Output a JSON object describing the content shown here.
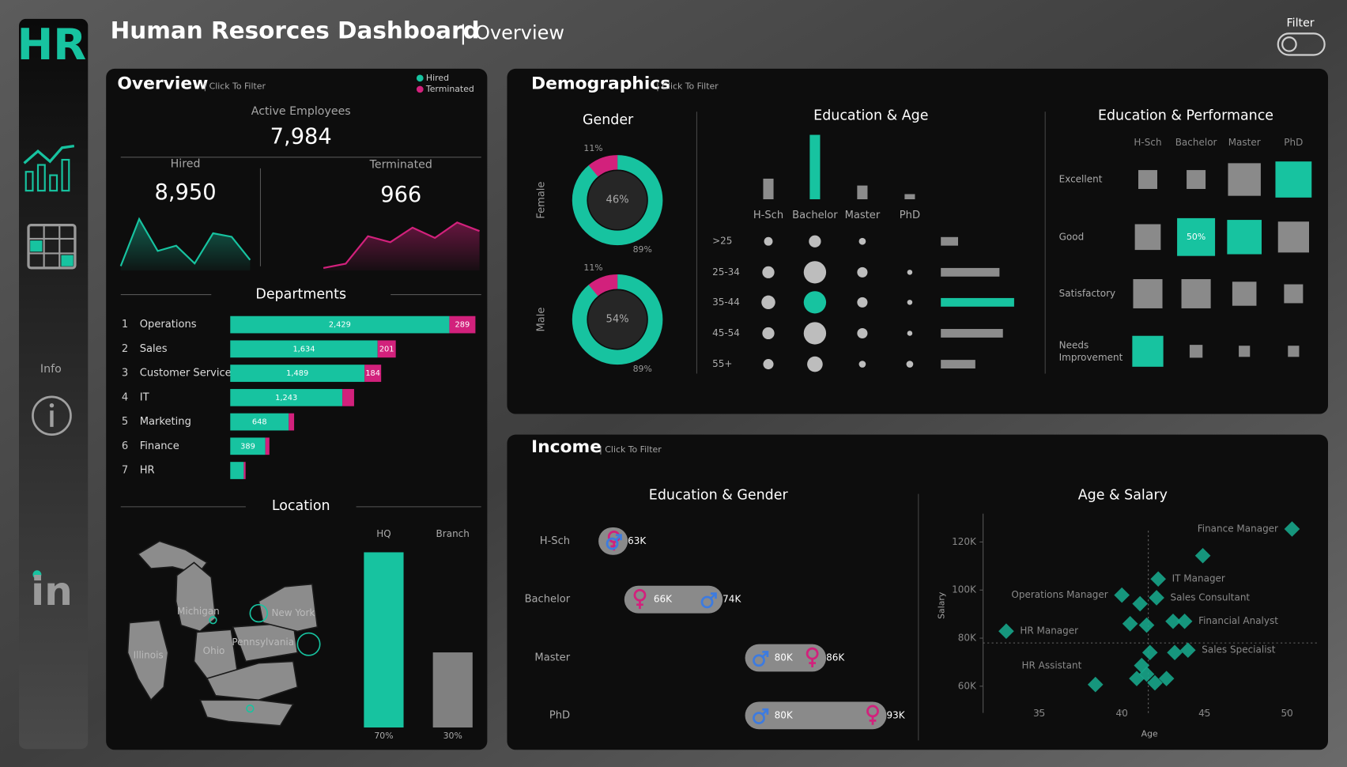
{
  "header": {
    "logo": "HR",
    "title": "Human Resorces Dashboard",
    "separator": "|",
    "subtitle": "Overview",
    "filter_label": "Filter"
  },
  "sidebar": {
    "info_label": "Info",
    "linkedin": "in"
  },
  "overview": {
    "title": "Overview",
    "hint": "| Click To Filter",
    "legend": [
      {
        "name": "Hired",
        "color": "#17c3a0"
      },
      {
        "name": "Terminated",
        "color": "#d2217c"
      }
    ],
    "active_label": "Active Employees",
    "active_value": "7,984",
    "hired_label": "Hired",
    "hired_value": "8,950",
    "terminated_label": "Terminated",
    "terminated_value": "966",
    "hired_trend": [
      5,
      58,
      22,
      28,
      8,
      42,
      38,
      12
    ],
    "terminated_trend": [
      3,
      8,
      40,
      33,
      50,
      38,
      56,
      46
    ]
  },
  "departments": {
    "title": "Departments",
    "rows": [
      {
        "rank": "1",
        "name": "Operations",
        "hired": 2429,
        "hired_label": "2,429",
        "terminated": 289,
        "terminated_label": "289"
      },
      {
        "rank": "2",
        "name": "Sales",
        "hired": 1634,
        "hired_label": "1,634",
        "terminated": 201,
        "terminated_label": "201"
      },
      {
        "rank": "3",
        "name": "Customer Service",
        "hired": 1489,
        "hired_label": "1,489",
        "terminated": 184,
        "terminated_label": "184"
      },
      {
        "rank": "4",
        "name": "IT",
        "hired": 1243,
        "hired_label": "1,243",
        "terminated": 130
      },
      {
        "rank": "5",
        "name": "Marketing",
        "hired": 648,
        "hired_label": "648",
        "terminated": 60
      },
      {
        "rank": "6",
        "name": "Finance",
        "hired": 389,
        "hired_label": "389",
        "terminated": 45
      },
      {
        "rank": "7",
        "name": "HR",
        "hired": 150,
        "terminated": 20
      }
    ]
  },
  "location": {
    "title": "Location",
    "states": [
      "Michigan",
      "New York",
      "Illinois",
      "Ohio",
      "Pennsylvania"
    ],
    "categories": [
      "HQ",
      "Branch"
    ],
    "values": [
      70,
      30
    ],
    "value_labels": [
      "70%",
      "30%"
    ],
    "colors": [
      "#17c3a0",
      "#808080"
    ]
  },
  "demographics": {
    "title": "Demographics",
    "hint": "| Click To Filter",
    "gender": {
      "title": "Gender",
      "groups": [
        {
          "label": "Female",
          "share": "46%",
          "values": [
            11,
            89
          ],
          "value_labels": [
            "11%",
            "89%"
          ]
        },
        {
          "label": "Male",
          "share": "54%",
          "values": [
            11,
            89
          ],
          "value_labels": [
            "11%",
            "89%"
          ]
        }
      ]
    },
    "education_age": {
      "title": "Education & Age",
      "education": [
        "H-Sch",
        "Bachelor",
        "Master",
        "PhD"
      ],
      "education_totals": [
        24,
        75,
        16,
        6
      ],
      "ages": [
        ">25",
        "25-34",
        "35-44",
        "45-54",
        "55+"
      ],
      "age_totals": [
        20,
        68,
        85,
        72,
        40
      ],
      "bubbles": [
        [
          25,
          49,
          16,
          null
        ],
        [
          49,
          169,
          36,
          9
        ],
        [
          64,
          169,
          36,
          9
        ],
        [
          49,
          169,
          36,
          9
        ],
        [
          36,
          81,
          16,
          16
        ]
      ]
    },
    "education_performance": {
      "title": "Education & Performance",
      "education": [
        "H-Sch",
        "Bachelor",
        "Master",
        "PhD"
      ],
      "ratings": [
        "Excellent",
        "Good",
        "Satisfactory",
        "Needs Improvement"
      ],
      "sizes": [
        [
          22,
          22,
          38,
          42
        ],
        [
          30,
          44,
          40,
          36
        ],
        [
          34,
          34,
          28,
          22
        ],
        [
          36,
          15,
          13,
          13
        ]
      ],
      "highlight": [
        [
          false,
          false,
          false,
          true
        ],
        [
          false,
          true,
          true,
          false
        ],
        [
          false,
          false,
          false,
          false
        ],
        [
          true,
          false,
          false,
          false
        ]
      ],
      "labels": [
        [
          null,
          null,
          null,
          null
        ],
        [
          null,
          "50%",
          null,
          null
        ],
        [
          null,
          null,
          null,
          null
        ],
        [
          null,
          null,
          null,
          null
        ]
      ]
    }
  },
  "income": {
    "title": "Income",
    "hint": "| Click To Filter",
    "education_gender": {
      "title": "Education & Gender",
      "categories": [
        "H-Sch",
        "Bachelor",
        "Master",
        "PhD"
      ],
      "female": [
        63,
        66,
        86,
        93
      ],
      "female_labels": [
        null,
        "66K",
        "86K",
        "93K"
      ],
      "male": [
        63,
        74,
        80,
        80
      ],
      "male_labels": [
        "63K",
        "74K",
        "80K",
        "80K"
      ]
    },
    "age_salary": {
      "type": "scatter",
      "title": "Age & Salary",
      "x_label": "Age",
      "y_label": "Salary",
      "xlim": [
        31.6,
        51.8
      ],
      "xticks": [
        35,
        40,
        45,
        50
      ],
      "ylim": [
        48.9,
        131.8
      ],
      "yticks": [
        {
          "value": 60,
          "label": "60K"
        },
        {
          "value": 80,
          "label": "80K"
        },
        {
          "value": 100,
          "label": "100K"
        },
        {
          "value": 120,
          "label": "120K"
        }
      ],
      "reference_lines": {
        "x": 41.6,
        "y": 78
      },
      "x": [
        50.3,
        44.9,
        42.2,
        40,
        41.1,
        42.1,
        43.8,
        43.1,
        40.5,
        41.5,
        33,
        44,
        43.2,
        41.7,
        41.2,
        41.5,
        40.9,
        42,
        42.7,
        38.4
      ],
      "y": [
        125.4,
        114.3,
        104.6,
        97.9,
        94.3,
        96.8,
        87,
        87,
        86,
        85.4,
        82.9,
        75,
        74,
        74,
        68.6,
        65,
        63.2,
        61.4,
        63.2,
        60.7
      ],
      "labels": [
        "Finance Manager",
        null,
        "IT Manager",
        "Operations Manager",
        null,
        "Sales Consultant",
        "Financial Analyst",
        null,
        null,
        null,
        "HR Manager",
        "Sales Specialist",
        null,
        null,
        null,
        null,
        null,
        null,
        null,
        "HR Assistant"
      ],
      "color": "#17a589"
    }
  }
}
